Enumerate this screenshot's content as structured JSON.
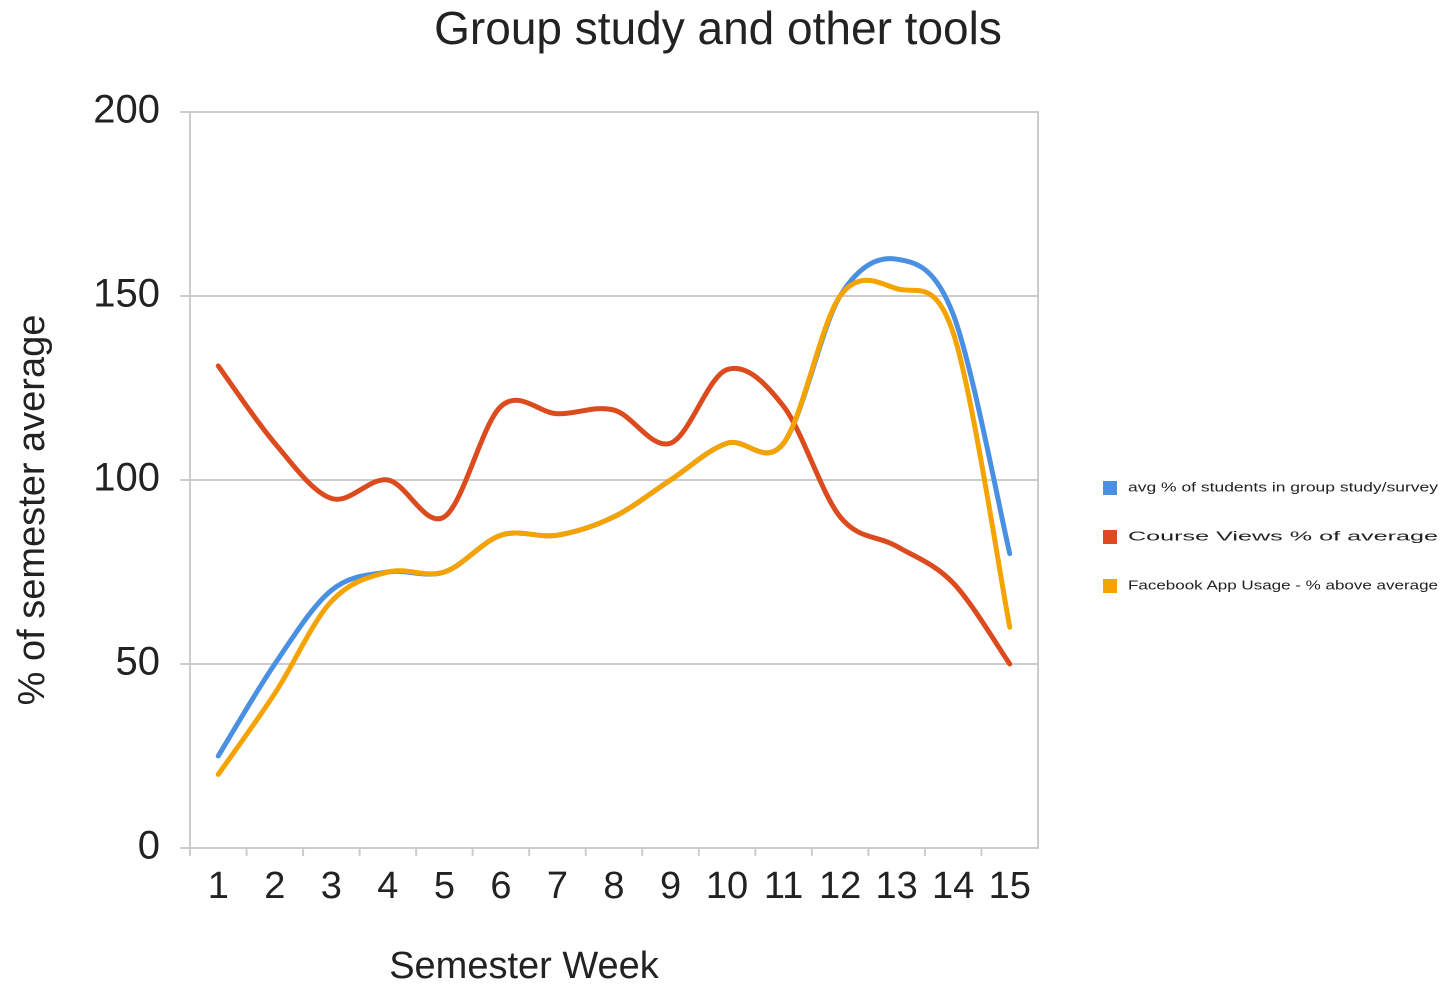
{
  "chart_data": {
    "type": "line",
    "title": "Group study and other tools",
    "x_label": "Semester Week",
    "y_label": "% of semester average",
    "categories": [
      "1",
      "2",
      "3",
      "4",
      "5",
      "6",
      "7",
      "8",
      "9",
      "10",
      "11",
      "12",
      "13",
      "14",
      "15"
    ],
    "series": [
      {
        "name": "avg % of students in group study/survey",
        "color": "#4a90e2",
        "values": [
          25,
          50,
          70,
          75,
          75,
          85,
          85,
          90,
          100,
          110,
          110,
          150,
          160,
          145,
          80
        ]
      },
      {
        "name": "Course Views % of average",
        "color": "#dc4b1e",
        "values": [
          131,
          110,
          95,
          100,
          90,
          120,
          118,
          119,
          110,
          130,
          120,
          90,
          82,
          72,
          50
        ]
      },
      {
        "name": "Facebook App Usage - % above average",
        "color": "#f5a300",
        "values": [
          20,
          42,
          67,
          75,
          75,
          85,
          85,
          90,
          100,
          110,
          110,
          150,
          152,
          140,
          60
        ]
      }
    ],
    "ylim": [
      0,
      200
    ],
    "yticks": [
      0,
      50,
      100,
      150,
      200
    ],
    "grid": true,
    "legend": "right"
  }
}
